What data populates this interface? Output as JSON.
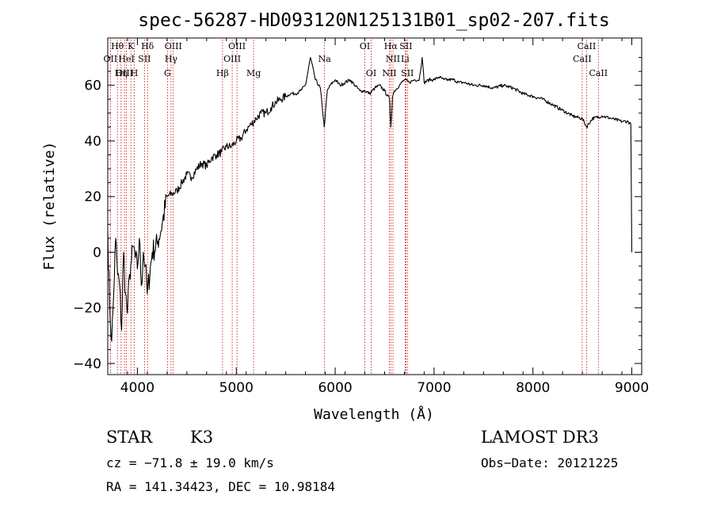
{
  "chart_data": {
    "type": "line",
    "title": "spec-56287-HD093120N125131B01_sp02-207.fits",
    "xlabel": "Wavelength (Å)",
    "ylabel": "Flux (relative)",
    "xlim": [
      3700,
      9100
    ],
    "ylim": [
      -44,
      77
    ],
    "x_ticks": [
      4000,
      5000,
      6000,
      7000,
      8000,
      9000
    ],
    "y_ticks": [
      -40,
      -20,
      0,
      20,
      40,
      60
    ],
    "grid": false,
    "colors": {
      "spectrum": "#000000",
      "line_markers": "#cc0000"
    },
    "series": [
      {
        "x": [
          3700,
          3720,
          3740,
          3760,
          3780,
          3800,
          3820,
          3840,
          3860,
          3880,
          3900,
          3920,
          3940,
          3960,
          3980,
          4000,
          4020,
          4040,
          4060,
          4080,
          4100,
          4150,
          4200,
          4250,
          4300,
          4350,
          4400,
          4450,
          4500,
          4550,
          4600,
          4650,
          4700,
          4750,
          4800,
          4850,
          4900,
          4950,
          5000,
          5050,
          5100,
          5150,
          5200,
          5250,
          5300,
          5350,
          5400,
          5450,
          5500,
          5550,
          5600,
          5650,
          5700,
          5750,
          5800,
          5850,
          5890,
          5920,
          5950,
          6000,
          6050,
          6100,
          6150,
          6200,
          6250,
          6300,
          6350,
          6400,
          6450,
          6500,
          6550,
          6563,
          6580,
          6600,
          6650,
          6700,
          6750,
          6800,
          6850,
          6880,
          6900,
          6950,
          7000,
          7050,
          7100,
          7150,
          7200,
          7250,
          7300,
          7400,
          7500,
          7600,
          7700,
          7800,
          7900,
          8000,
          8100,
          8200,
          8300,
          8400,
          8500,
          8542,
          8600,
          8700,
          8800,
          8900,
          8960,
          8990,
          9000
        ],
        "values": [
          8,
          -20,
          -32,
          -15,
          5,
          -8,
          -12,
          -28,
          0,
          -15,
          -22,
          -8,
          -3,
          2,
          -2,
          -6,
          5,
          -12,
          0,
          -5,
          -15,
          0,
          3,
          10,
          20,
          21,
          22,
          25,
          28,
          27,
          30,
          32,
          31,
          34,
          35,
          36,
          38,
          38,
          40,
          41,
          44,
          46,
          48,
          50,
          50,
          52,
          54,
          55,
          56,
          57,
          57,
          58,
          60,
          70,
          62,
          59,
          45,
          58,
          60,
          62,
          60,
          61,
          62,
          60,
          58,
          58,
          57,
          59,
          60,
          58,
          55,
          45,
          56,
          58,
          60,
          62,
          61,
          62,
          62,
          70,
          61,
          62,
          62,
          63,
          62,
          62,
          62,
          61,
          61,
          60,
          60,
          59,
          60,
          59,
          57,
          56,
          55,
          53,
          51,
          49,
          48,
          45,
          48,
          49,
          48,
          47,
          47,
          46,
          0
        ]
      }
    ],
    "spectral_lines": [
      {
        "label": "Hθ",
        "wavelength": 3798,
        "row": 1
      },
      {
        "label": "OII",
        "wavelength": 3727,
        "row": 2
      },
      {
        "label": "OIII",
        "wavelength": 3869,
        "row": 3
      },
      {
        "label": "K",
        "wavelength": 3934,
        "row": 1
      },
      {
        "label": "HeI",
        "wavelength": 3889,
        "row": 2
      },
      {
        "label": "Hη",
        "wavelength": 3835,
        "row": 3
      },
      {
        "label": "Hδ",
        "wavelength": 4102,
        "row": 1
      },
      {
        "label": "SII",
        "wavelength": 4072,
        "row": 2
      },
      {
        "label": "H",
        "wavelength": 3969,
        "row": 3
      },
      {
        "label": "OIII",
        "wavelength": 4363,
        "row": 1
      },
      {
        "label": "Hγ",
        "wavelength": 4340,
        "row": 2
      },
      {
        "label": "G",
        "wavelength": 4304,
        "row": 3
      },
      {
        "label": "OIII",
        "wavelength": 5007,
        "row": 1
      },
      {
        "label": "OIII",
        "wavelength": 4959,
        "row": 2
      },
      {
        "label": "Hβ",
        "wavelength": 4861,
        "row": 3
      },
      {
        "label": "Mg",
        "wavelength": 5175,
        "row": 3
      },
      {
        "label": "Na",
        "wavelength": 5893,
        "row": 2
      },
      {
        "label": "OI",
        "wavelength": 6300,
        "row": 1
      },
      {
        "label": "OI",
        "wavelength": 6364,
        "row": 3
      },
      {
        "label": "Hα",
        "wavelength": 6563,
        "row": 1
      },
      {
        "label": "SII",
        "wavelength": 6716,
        "row": 1
      },
      {
        "label": "NII",
        "wavelength": 6584,
        "row": 2
      },
      {
        "label": "Li",
        "wavelength": 6708,
        "row": 2
      },
      {
        "label": "NII",
        "wavelength": 6548,
        "row": 3
      },
      {
        "label": "SII",
        "wavelength": 6731,
        "row": 3
      },
      {
        "label": "CaII",
        "wavelength": 8542,
        "row": 1
      },
      {
        "label": "CaII",
        "wavelength": 8498,
        "row": 2
      },
      {
        "label": "CaII",
        "wavelength": 8662,
        "row": 3
      }
    ]
  },
  "info": {
    "object_class": "STAR",
    "subclass": "K3",
    "survey": "LAMOST DR3",
    "redshift": "cz = −71.8 ± 19.0 km/s",
    "obs_date": "Obs−Date: 20121225",
    "coordinates": "RA = 141.34423, DEC =  10.98184"
  }
}
